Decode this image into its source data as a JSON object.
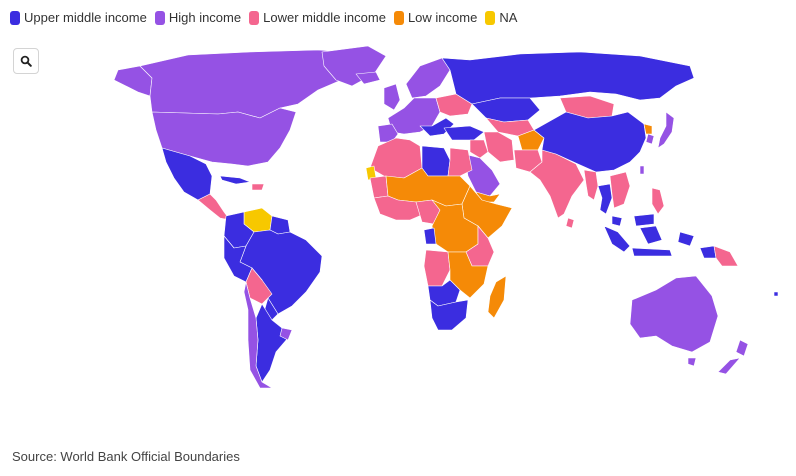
{
  "legend": [
    {
      "label": "Upper middle income",
      "color": "#3b2de0"
    },
    {
      "label": "High income",
      "color": "#9552e4"
    },
    {
      "label": "Lower middle income",
      "color": "#f4668f"
    },
    {
      "label": "Low income",
      "color": "#f58a07"
    },
    {
      "label": "NA",
      "color": "#f7c800"
    }
  ],
  "zoom": {
    "icon": "search-icon"
  },
  "source": "Source: World Bank Official Boundaries"
}
